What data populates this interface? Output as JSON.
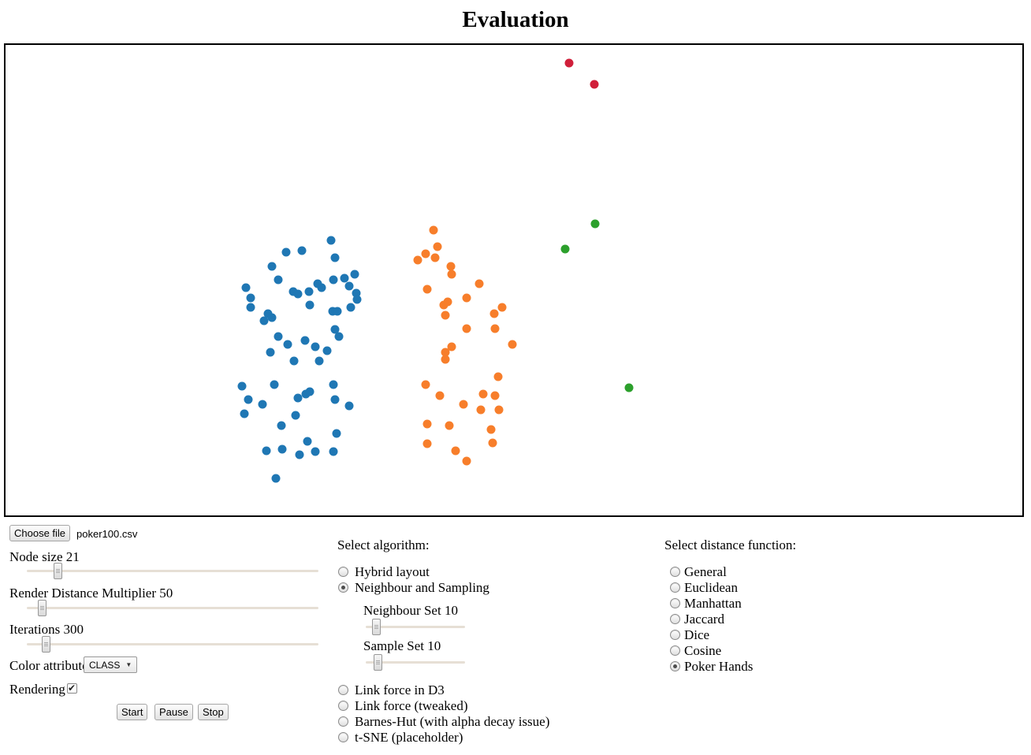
{
  "title": "Evaluation",
  "file_input": {
    "button_label": "Choose file",
    "filename": "poker100.csv"
  },
  "sliders": {
    "node_size": {
      "label": "Node size",
      "value": "21",
      "thumb_pct": "10.6%"
    },
    "render_distance": {
      "label": "Render Distance Multiplier",
      "value": "50",
      "thumb_pct": "5.2%"
    },
    "iterations": {
      "label": "Iterations",
      "value": "300",
      "thumb_pct": "6.5%"
    },
    "neighbour_set": {
      "label": "Neighbour Set",
      "value": "10",
      "thumb_pct": "10%"
    },
    "sample_set": {
      "label": "Sample Set",
      "value": "10",
      "thumb_pct": "12%"
    }
  },
  "color_attribute": {
    "label": "Color attribute",
    "selected_option": "CLASS"
  },
  "rendering": {
    "label": "Rendering",
    "checked": true
  },
  "buttons": {
    "start": "Start",
    "pause": "Pause",
    "stop": "Stop"
  },
  "algorithm": {
    "heading": "Select algorithm:",
    "options": [
      {
        "label": "Hybrid layout",
        "selected": false
      },
      {
        "label": "Neighbour and Sampling",
        "selected": true
      },
      {
        "label": "Link force in D3",
        "selected": false
      },
      {
        "label": "Link force (tweaked)",
        "selected": false
      },
      {
        "label": "Barnes-Hut (with alpha decay issue)",
        "selected": false
      },
      {
        "label": "t-SNE (placeholder)",
        "selected": false
      }
    ]
  },
  "distance": {
    "heading": "Select distance function:",
    "options": [
      {
        "label": "General",
        "selected": false
      },
      {
        "label": "Euclidean",
        "selected": false
      },
      {
        "label": "Manhattan",
        "selected": false
      },
      {
        "label": "Jaccard",
        "selected": false
      },
      {
        "label": "Dice",
        "selected": false
      },
      {
        "label": "Cosine",
        "selected": false
      },
      {
        "label": "Poker Hands",
        "selected": true
      }
    ]
  },
  "chart_data": {
    "type": "scatter",
    "title": "Evaluation",
    "color_attribute": "CLASS",
    "axes_visible": false,
    "grid": false,
    "legend": "none",
    "point_radius": 5.5,
    "xlim": [
      0,
      1294
    ],
    "ylim": [
      0,
      601
    ],
    "units": "plot pixels, y down",
    "series": [
      {
        "name": "class-blue",
        "color": "#1f77b4",
        "points": [
          [
            413,
            248
          ],
          [
            356,
            263
          ],
          [
            376,
            261
          ],
          [
            418,
            270
          ],
          [
            338,
            281
          ],
          [
            443,
            291
          ],
          [
            346,
            298
          ],
          [
            416,
            298
          ],
          [
            430,
            296
          ],
          [
            396,
            303
          ],
          [
            401,
            308
          ],
          [
            305,
            308
          ],
          [
            436,
            306
          ],
          [
            445,
            315
          ],
          [
            311,
            321
          ],
          [
            365,
            313
          ],
          [
            371,
            316
          ],
          [
            385,
            313
          ],
          [
            446,
            323
          ],
          [
            386,
            330
          ],
          [
            311,
            333
          ],
          [
            415,
            338
          ],
          [
            421,
            338
          ],
          [
            438,
            333
          ],
          [
            333,
            341
          ],
          [
            338,
            346
          ],
          [
            328,
            350
          ],
          [
            418,
            361
          ],
          [
            423,
            370
          ],
          [
            346,
            370
          ],
          [
            380,
            375
          ],
          [
            358,
            380
          ],
          [
            393,
            383
          ],
          [
            336,
            390
          ],
          [
            408,
            388
          ],
          [
            366,
            401
          ],
          [
            398,
            401
          ],
          [
            300,
            433
          ],
          [
            341,
            431
          ],
          [
            416,
            431
          ],
          [
            381,
            443
          ],
          [
            386,
            440
          ],
          [
            371,
            448
          ],
          [
            308,
            450
          ],
          [
            326,
            456
          ],
          [
            418,
            450
          ],
          [
            436,
            458
          ],
          [
            303,
            468
          ],
          [
            368,
            470
          ],
          [
            350,
            483
          ],
          [
            420,
            493
          ],
          [
            383,
            503
          ],
          [
            331,
            515
          ],
          [
            351,
            513
          ],
          [
            373,
            520
          ],
          [
            393,
            516
          ],
          [
            416,
            516
          ],
          [
            343,
            550
          ]
        ]
      },
      {
        "name": "class-orange",
        "color": "#f77e2b",
        "points": [
          [
            543,
            235
          ],
          [
            548,
            256
          ],
          [
            533,
            265
          ],
          [
            523,
            273
          ],
          [
            545,
            270
          ],
          [
            565,
            281
          ],
          [
            566,
            291
          ],
          [
            601,
            303
          ],
          [
            535,
            310
          ],
          [
            585,
            321
          ],
          [
            556,
            330
          ],
          [
            561,
            326
          ],
          [
            558,
            343
          ],
          [
            630,
            333
          ],
          [
            620,
            341
          ],
          [
            621,
            360
          ],
          [
            585,
            360
          ],
          [
            643,
            380
          ],
          [
            566,
            383
          ],
          [
            558,
            390
          ],
          [
            558,
            399
          ],
          [
            625,
            421
          ],
          [
            533,
            431
          ],
          [
            551,
            445
          ],
          [
            606,
            443
          ],
          [
            621,
            445
          ],
          [
            581,
            456
          ],
          [
            603,
            463
          ],
          [
            626,
            463
          ],
          [
            535,
            481
          ],
          [
            563,
            483
          ],
          [
            616,
            488
          ],
          [
            618,
            505
          ],
          [
            535,
            506
          ],
          [
            571,
            515
          ],
          [
            585,
            528
          ]
        ]
      },
      {
        "name": "class-green",
        "color": "#2ca02c",
        "points": [
          [
            748,
            227
          ],
          [
            710,
            259
          ],
          [
            791,
            435
          ]
        ]
      },
      {
        "name": "class-red",
        "color": "#d01f3a",
        "points": [
          [
            715,
            23
          ],
          [
            747,
            50
          ]
        ]
      }
    ]
  }
}
